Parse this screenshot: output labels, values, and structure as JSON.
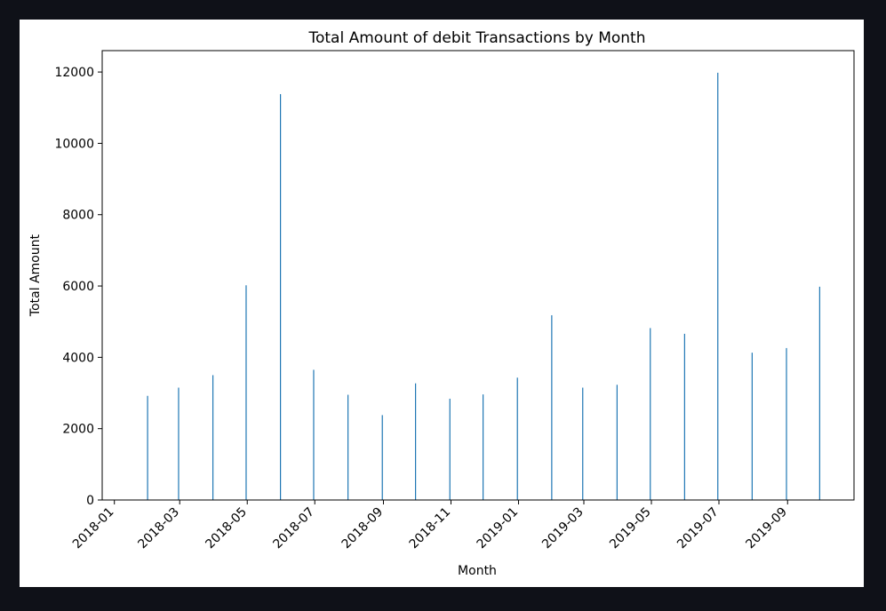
{
  "chart_data": {
    "type": "bar",
    "title": "Total Amount of debit Transactions by Month",
    "xlabel": "Month",
    "ylabel": "Total Amount",
    "ylim": [
      0,
      12600
    ],
    "xlim": [
      "2017-12-21",
      "2019-10-31"
    ],
    "grid": false,
    "legend": "none",
    "colors": {
      "bar": "#1f77b4",
      "axis": "#000000",
      "background": "#ffffff"
    },
    "y_ticks": [
      {
        "value": 0,
        "label": "0"
      },
      {
        "value": 2000,
        "label": "2000"
      },
      {
        "value": 4000,
        "label": "4000"
      },
      {
        "value": 6000,
        "label": "6000"
      },
      {
        "value": 8000,
        "label": "8000"
      },
      {
        "value": 10000,
        "label": "10000"
      },
      {
        "value": 12000,
        "label": "12000"
      }
    ],
    "x_ticks": [
      {
        "date": "2018-01-01",
        "label": "2018-01"
      },
      {
        "date": "2018-03-01",
        "label": "2018-03"
      },
      {
        "date": "2018-05-01",
        "label": "2018-05"
      },
      {
        "date": "2018-07-01",
        "label": "2018-07"
      },
      {
        "date": "2018-09-01",
        "label": "2018-09"
      },
      {
        "date": "2018-11-01",
        "label": "2018-11"
      },
      {
        "date": "2019-01-01",
        "label": "2019-01"
      },
      {
        "date": "2019-03-01",
        "label": "2019-03"
      },
      {
        "date": "2019-05-01",
        "label": "2019-05"
      },
      {
        "date": "2019-07-01",
        "label": "2019-07"
      },
      {
        "date": "2019-09-01",
        "label": "2019-09"
      }
    ],
    "bars": [
      {
        "x": "2018-01-31",
        "y": 2920
      },
      {
        "x": "2018-02-28",
        "y": 3150
      },
      {
        "x": "2018-03-31",
        "y": 3500
      },
      {
        "x": "2018-04-30",
        "y": 6020
      },
      {
        "x": "2018-05-31",
        "y": 11380
      },
      {
        "x": "2018-06-30",
        "y": 3650
      },
      {
        "x": "2018-07-31",
        "y": 2950
      },
      {
        "x": "2018-08-31",
        "y": 2380
      },
      {
        "x": "2018-09-30",
        "y": 3270
      },
      {
        "x": "2018-10-31",
        "y": 2840
      },
      {
        "x": "2018-11-30",
        "y": 2960
      },
      {
        "x": "2018-12-31",
        "y": 3430
      },
      {
        "x": "2019-01-31",
        "y": 5180
      },
      {
        "x": "2019-02-28",
        "y": 3150
      },
      {
        "x": "2019-03-31",
        "y": 3230
      },
      {
        "x": "2019-04-30",
        "y": 4820
      },
      {
        "x": "2019-05-31",
        "y": 4660
      },
      {
        "x": "2019-06-30",
        "y": 11980
      },
      {
        "x": "2019-07-31",
        "y": 4130
      },
      {
        "x": "2019-08-31",
        "y": 4260
      },
      {
        "x": "2019-09-30",
        "y": 5980
      }
    ]
  }
}
